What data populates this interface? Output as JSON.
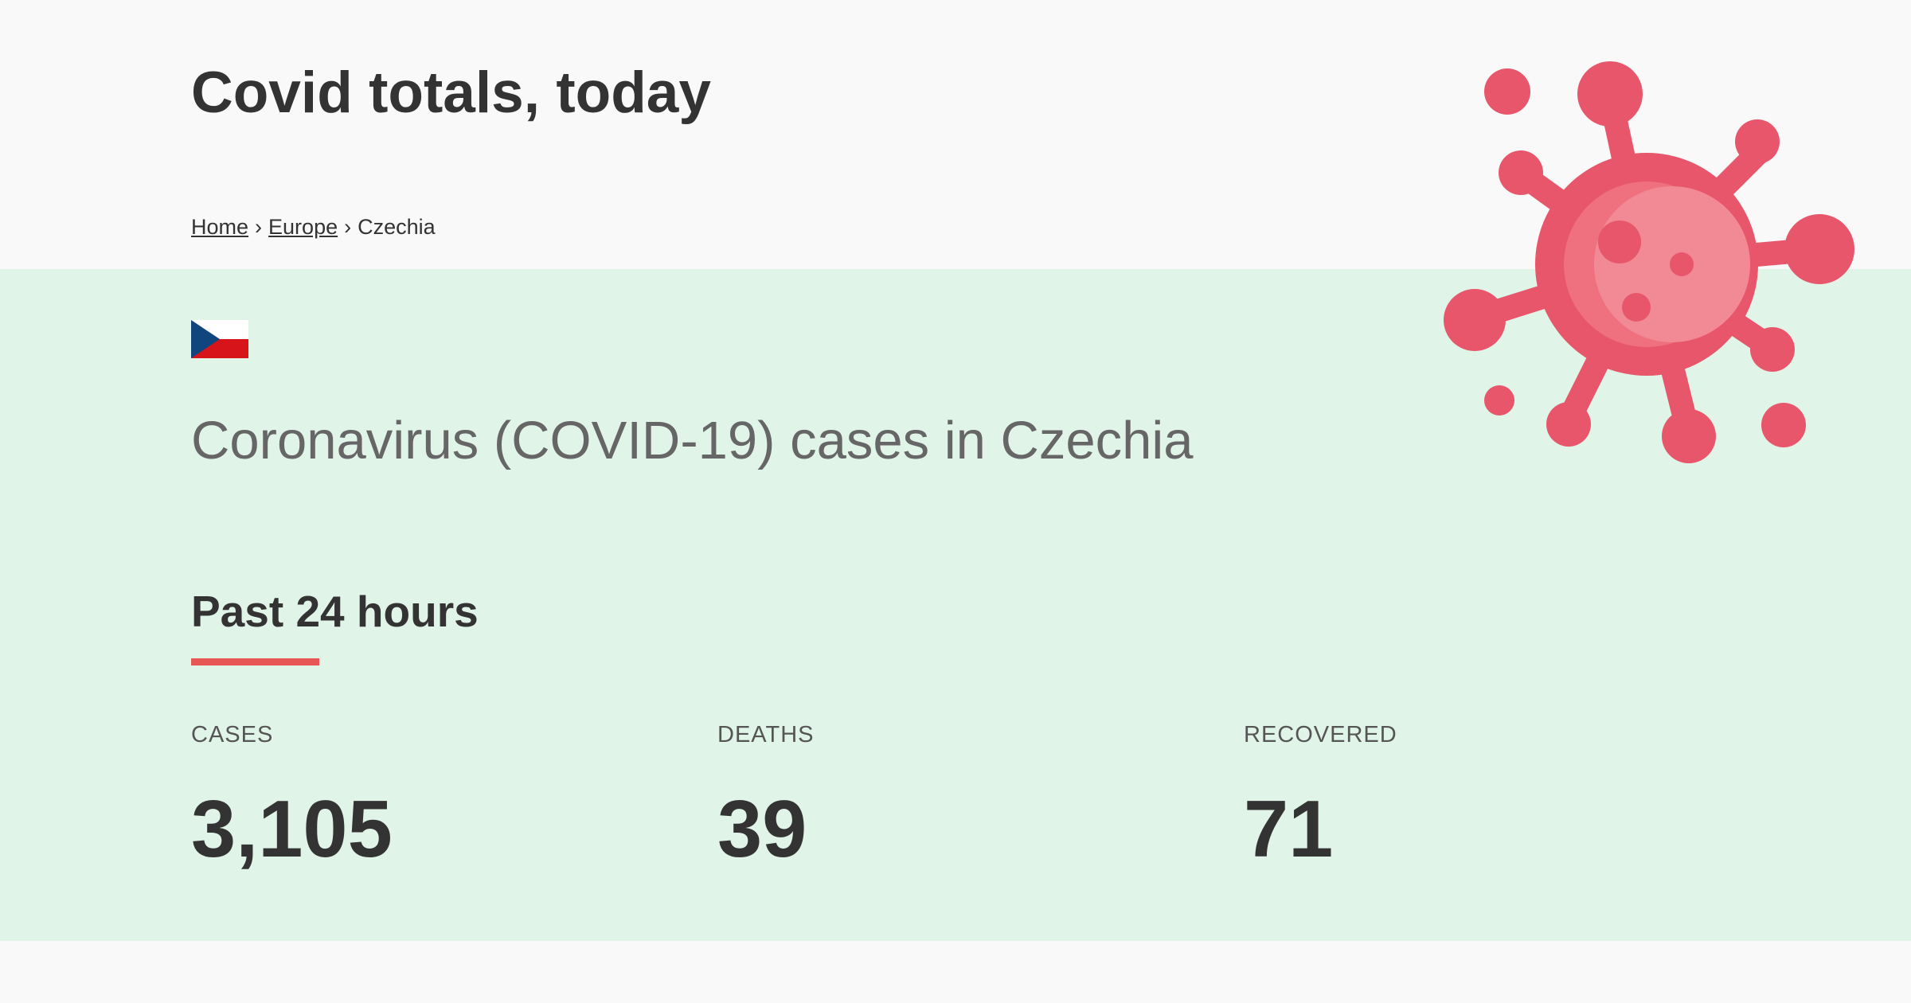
{
  "header": {
    "title": "Covid totals, today",
    "breadcrumb": {
      "home": "Home",
      "separator": "›",
      "region": "Europe",
      "current": "Czechia"
    },
    "illustration_icon": "virus-icon"
  },
  "country": {
    "flag_icon": "czech-flag-icon",
    "heading": "Coronavirus (COVID-19) cases in Czechia"
  },
  "period": {
    "title": "Past 24 hours",
    "accent_color": "#e85656"
  },
  "stats": [
    {
      "label": "CASES",
      "value": "3,105"
    },
    {
      "label": "DEATHS",
      "value": "39"
    },
    {
      "label": "RECOVERED",
      "value": "71"
    }
  ],
  "colors": {
    "page_background": "#f9f9f9",
    "section_background": "#e0f4e7",
    "virus": "#e8566c"
  }
}
